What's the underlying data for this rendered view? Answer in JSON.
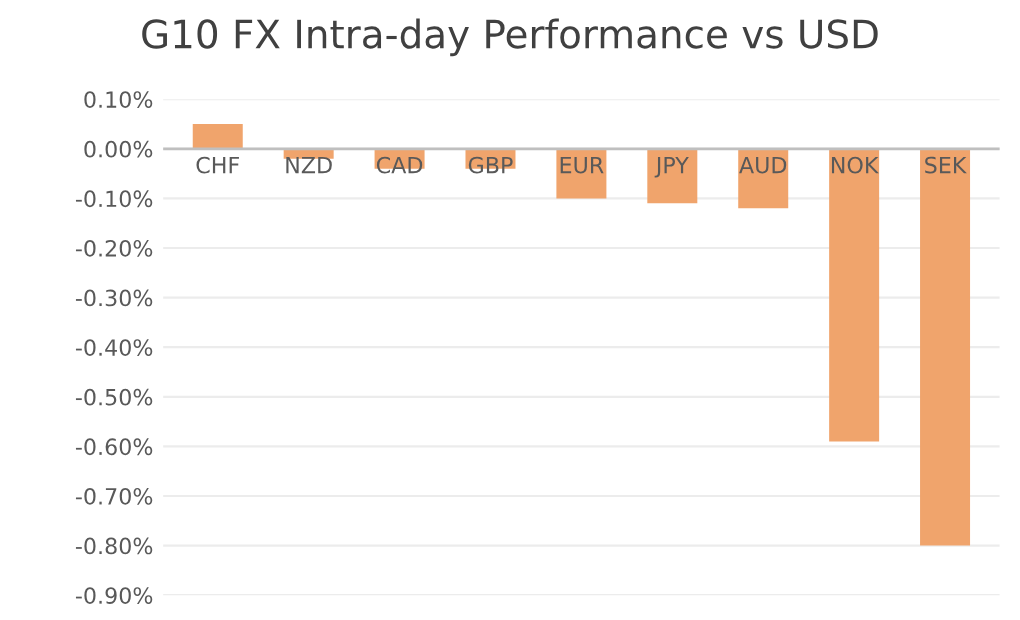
{
  "chart_data": {
    "type": "bar",
    "title": "G10 FX Intra-day Performance vs USD",
    "categories": [
      "CHF",
      "NZD",
      "CAD",
      "GBP",
      "EUR",
      "JPY",
      "AUD",
      "NOK",
      "SEK"
    ],
    "values": [
      0.05,
      -0.02,
      -0.04,
      -0.04,
      -0.1,
      -0.11,
      -0.12,
      -0.59,
      -0.8
    ],
    "color": "#f0a46c",
    "ylim": [
      -0.9,
      0.1
    ],
    "yticks": [
      {
        "value": 0.1,
        "label": "0.10%"
      },
      {
        "value": 0.0,
        "label": "0.00%"
      },
      {
        "value": -0.1,
        "label": "-0.10%"
      },
      {
        "value": -0.2,
        "label": "-0.20%"
      },
      {
        "value": -0.3,
        "label": "-0.30%"
      },
      {
        "value": -0.4,
        "label": "-0.40%"
      },
      {
        "value": -0.5,
        "label": "-0.50%"
      },
      {
        "value": -0.6,
        "label": "-0.60%"
      },
      {
        "value": -0.7,
        "label": "-0.70%"
      },
      {
        "value": -0.8,
        "label": "-0.80%"
      },
      {
        "value": -0.9,
        "label": "-0.90%"
      }
    ],
    "grid": "y"
  }
}
